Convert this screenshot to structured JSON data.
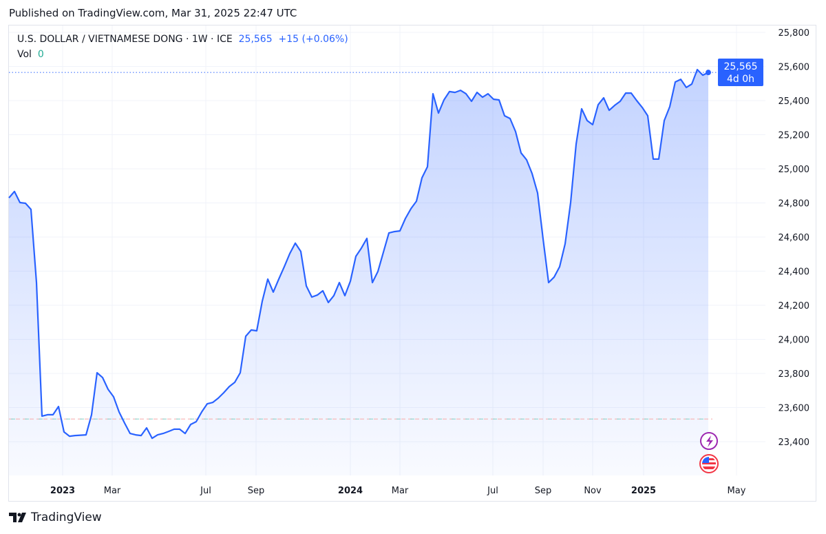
{
  "published": "Published on TradingView.com, Mar 31, 2025 22:47 UTC",
  "legend": {
    "symbol": "U.S. DOLLAR / VIETNAMESE DONG · 1W · ICE",
    "price": "25,565",
    "change": "+15 (+0.06%)",
    "vol_label": "Vol",
    "vol_value": "0"
  },
  "price_label": {
    "value": "25,565",
    "countdown": "4d 0h"
  },
  "brand": "TradingView",
  "chart_data": {
    "type": "area",
    "interval": "1W",
    "ylim": [
      23200,
      25900
    ],
    "yticks": [
      25800,
      25600,
      25400,
      25200,
      25000,
      24800,
      24600,
      24400,
      24200,
      24000,
      23800,
      23600,
      23400
    ],
    "ytick_labels": [
      "25,800",
      "25,600",
      "25,400",
      "25,200",
      "25,000",
      "24,800",
      "24,600",
      "24,400",
      "24,200",
      "24,000",
      "23,800",
      "23,600",
      "23,400"
    ],
    "xtick_labels": [
      "2023",
      "Mar",
      "Jul",
      "Sep",
      "2024",
      "Mar",
      "Jul",
      "Sep",
      "Nov",
      "2025",
      "May"
    ],
    "grid": true,
    "line_color": "#2962ff",
    "last_value": 25565,
    "baseline_value": 23533,
    "values": [
      24830,
      24867,
      24802,
      24798,
      24762,
      24333,
      23550,
      23558,
      23558,
      23606,
      23457,
      23432,
      23436,
      23438,
      23440,
      23558,
      23804,
      23776,
      23707,
      23663,
      23574,
      23509,
      23448,
      23440,
      23436,
      23481,
      23420,
      23440,
      23448,
      23460,
      23473,
      23473,
      23448,
      23501,
      23517,
      23574,
      23622,
      23630,
      23655,
      23687,
      23723,
      23748,
      23804,
      24018,
      24055,
      24050,
      24224,
      24353,
      24277,
      24353,
      24426,
      24503,
      24564,
      24515,
      24313,
      24248,
      24260,
      24285,
      24216,
      24256,
      24333,
      24256,
      24341,
      24487,
      24535,
      24592,
      24333,
      24398,
      24511,
      24624,
      24632,
      24636,
      24709,
      24766,
      24810,
      24947,
      25012,
      25440,
      25327,
      25404,
      25453,
      25448,
      25460,
      25440,
      25396,
      25448,
      25420,
      25440,
      25408,
      25404,
      25311,
      25295,
      25218,
      25093,
      25053,
      24972,
      24858,
      24588,
      24333,
      24365,
      24426,
      24560,
      24802,
      25145,
      25352,
      25283,
      25259,
      25376,
      25416,
      25343,
      25372,
      25396,
      25444,
      25444,
      25400,
      25360,
      25311,
      25057,
      25057,
      25283,
      25364,
      25509,
      25525,
      25477,
      25497,
      25582,
      25549,
      25565
    ]
  }
}
